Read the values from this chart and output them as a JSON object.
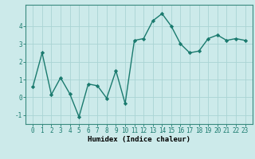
{
  "xlabel": "Humidex (Indice chaleur)",
  "x": [
    0,
    1,
    2,
    3,
    4,
    5,
    6,
    7,
    8,
    9,
    10,
    11,
    12,
    13,
    14,
    15,
    16,
    17,
    18,
    19,
    20,
    21,
    22,
    23
  ],
  "y": [
    0.6,
    2.5,
    0.15,
    1.1,
    0.2,
    -1.1,
    0.75,
    0.65,
    -0.05,
    1.5,
    -0.35,
    3.2,
    3.3,
    4.3,
    4.7,
    4.0,
    3.0,
    2.5,
    2.6,
    3.3,
    3.5,
    3.2,
    3.3,
    3.2
  ],
  "line_color": "#1a7a6e",
  "marker": "D",
  "marker_size": 2.2,
  "line_width": 1.0,
  "bg_color": "#cceaea",
  "grid_color": "#aad4d4",
  "ylim": [
    -1.5,
    5.2
  ],
  "yticks": [
    -1,
    0,
    1,
    2,
    3,
    4
  ],
  "tick_fontsize": 5.5,
  "label_fontsize": 6.5
}
